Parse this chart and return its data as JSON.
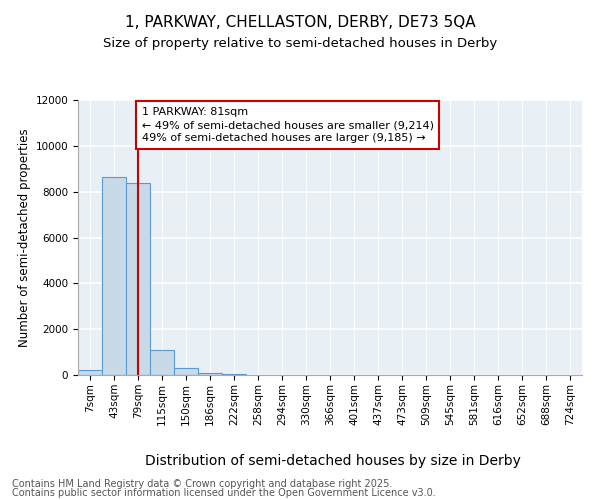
{
  "title": "1, PARKWAY, CHELLASTON, DERBY, DE73 5QA",
  "subtitle": "Size of property relative to semi-detached houses in Derby",
  "xlabel": "Distribution of semi-detached houses by size in Derby",
  "ylabel": "Number of semi-detached properties",
  "footer_line1": "Contains HM Land Registry data © Crown copyright and database right 2025.",
  "footer_line2": "Contains public sector information licensed under the Open Government Licence v3.0.",
  "bin_labels": [
    "7sqm",
    "43sqm",
    "79sqm",
    "115sqm",
    "150sqm",
    "186sqm",
    "222sqm",
    "258sqm",
    "294sqm",
    "330sqm",
    "366sqm",
    "401sqm",
    "437sqm",
    "473sqm",
    "509sqm",
    "545sqm",
    "581sqm",
    "616sqm",
    "652sqm",
    "688sqm",
    "724sqm"
  ],
  "bar_values": [
    200,
    8650,
    8400,
    1100,
    310,
    90,
    45,
    10,
    4,
    2,
    1,
    0,
    0,
    0,
    0,
    0,
    0,
    0,
    0,
    0,
    0
  ],
  "bar_color": "#c8d9e8",
  "bar_edge_color": "#5b9bd5",
  "bar_edge_width": 0.8,
  "vline_x_idx": 2,
  "vline_color": "#cc0000",
  "annotation_line1": "1 PARKWAY: 81sqm",
  "annotation_line2": "← 49% of semi-detached houses are smaller (9,214)",
  "annotation_line3": "49% of semi-detached houses are larger (9,185) →",
  "annotation_box_facecolor": "#ffffff",
  "annotation_box_edgecolor": "#cc0000",
  "ylim": [
    0,
    12000
  ],
  "yticks": [
    0,
    2000,
    4000,
    6000,
    8000,
    10000,
    12000
  ],
  "background_color": "#e8eff5",
  "grid_color": "#ffffff",
  "title_fontsize": 11,
  "subtitle_fontsize": 9.5,
  "ylabel_fontsize": 8.5,
  "xlabel_fontsize": 10,
  "tick_fontsize": 7.5,
  "footer_fontsize": 7.0,
  "annotation_fontsize": 8.0
}
